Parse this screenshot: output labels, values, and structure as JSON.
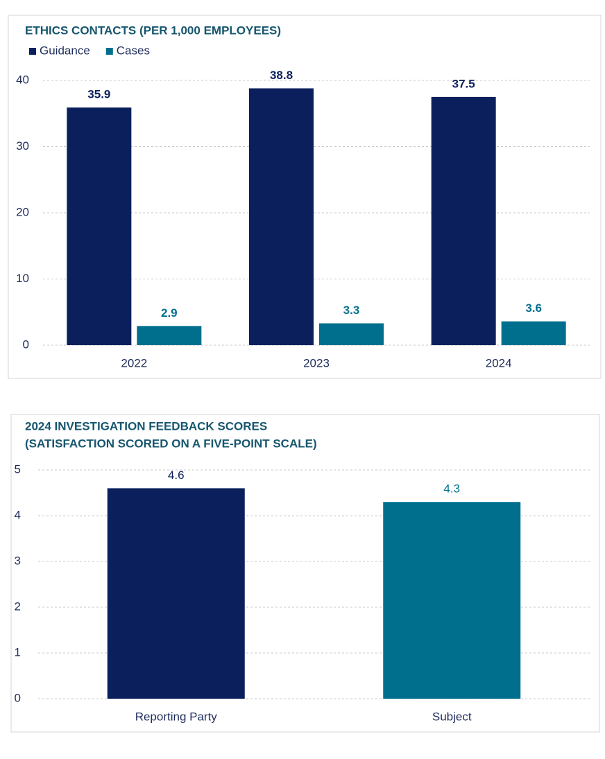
{
  "chart_data": [
    {
      "type": "bar",
      "title": "ETHICS CONTACTS (PER 1,000 EMPLOYEES)",
      "categories": [
        "2022",
        "2023",
        "2024"
      ],
      "series": [
        {
          "name": "Guidance",
          "color": "#0b1f5c",
          "values": [
            35.9,
            38.8,
            37.5
          ]
        },
        {
          "name": "Cases",
          "color": "#006f8e",
          "values": [
            2.9,
            3.3,
            3.6
          ]
        }
      ],
      "ylim": [
        0,
        40
      ],
      "yticks": [
        0,
        10,
        20,
        30,
        40
      ],
      "grid": true,
      "legend": "top-left"
    },
    {
      "type": "bar",
      "title": "2024 INVESTIGATION FEEDBACK SCORES",
      "subtitle": "(SATISFACTION SCORED ON A FIVE-POINT SCALE)",
      "categories": [
        "Reporting Party",
        "Subject"
      ],
      "values": [
        4.6,
        4.3
      ],
      "colors": [
        "#0b1f5c",
        "#006f8e"
      ],
      "ylim": [
        0,
        5
      ],
      "yticks": [
        0,
        1,
        2,
        3,
        4,
        5
      ],
      "grid": true
    }
  ]
}
